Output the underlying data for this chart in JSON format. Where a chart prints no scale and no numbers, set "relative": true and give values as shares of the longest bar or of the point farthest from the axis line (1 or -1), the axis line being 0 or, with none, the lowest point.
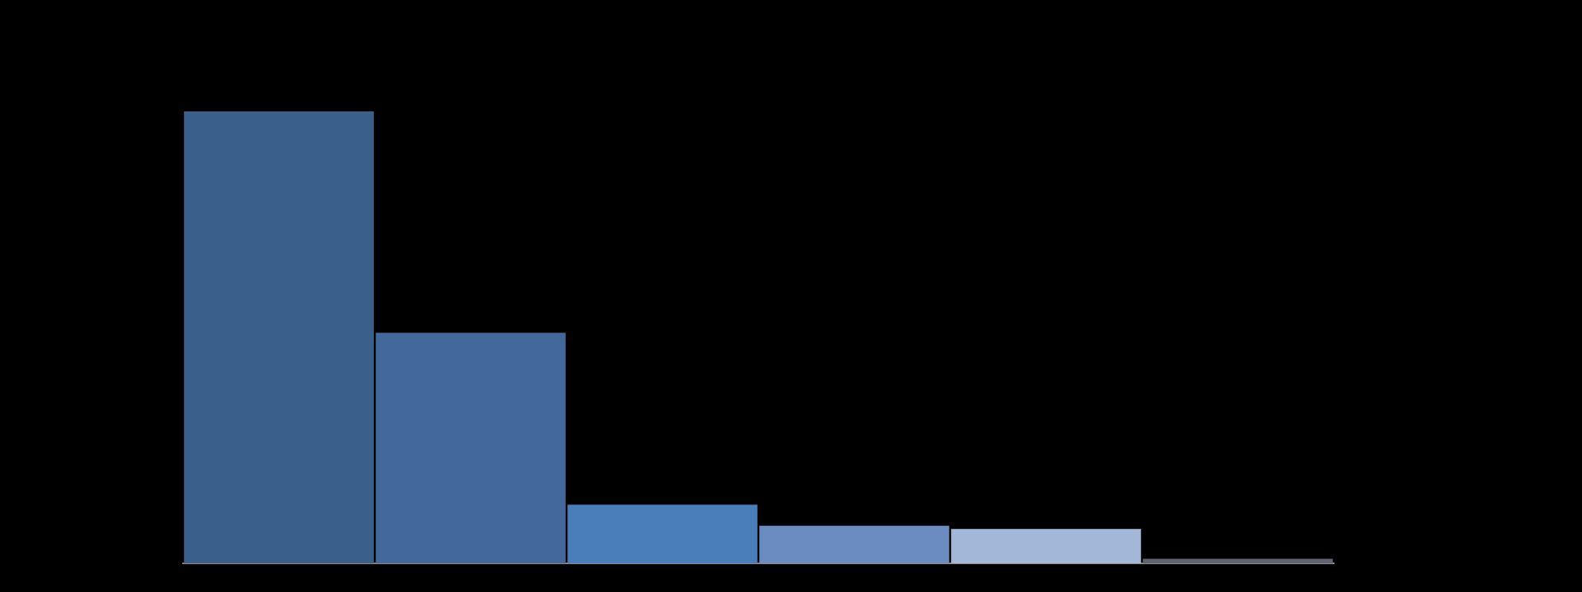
{
  "chart_data": {
    "type": "bar",
    "relative": true,
    "categories": [
      null,
      null,
      null,
      null,
      null,
      null
    ],
    "values": [
      1,
      0.51,
      0.13,
      0.083,
      0.076,
      0.01
    ],
    "colors": [
      "#3a5f8a",
      "#43699c",
      "#4a7ebb",
      "#6a8cc0",
      "#a3b7d8",
      "#5f6470"
    ]
  }
}
